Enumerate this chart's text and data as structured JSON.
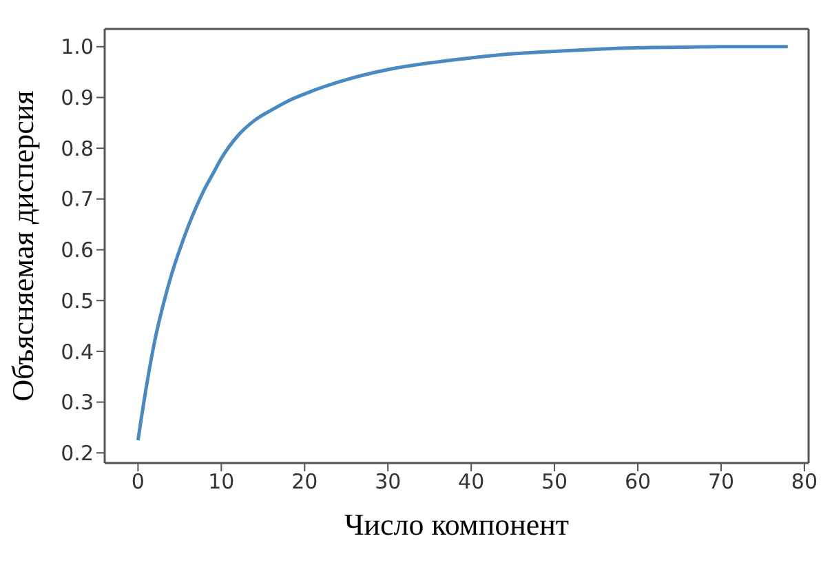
{
  "chart_data": {
    "type": "line",
    "xlabel": "Число компонент",
    "ylabel": "Объясняемая дисперсия",
    "x": [
      0,
      1,
      2,
      3,
      4,
      5,
      6,
      7,
      8,
      9,
      10,
      12,
      14,
      16,
      18,
      20,
      25,
      30,
      35,
      40,
      45,
      50,
      55,
      60,
      65,
      70,
      78
    ],
    "series": [
      {
        "color": "#4a8ac0",
        "values": [
          0.225,
          0.33,
          0.42,
          0.49,
          0.55,
          0.6,
          0.645,
          0.685,
          0.72,
          0.75,
          0.78,
          0.825,
          0.855,
          0.875,
          0.893,
          0.907,
          0.935,
          0.955,
          0.968,
          0.978,
          0.986,
          0.991,
          0.995,
          0.998,
          0.999,
          1.0,
          1.0
        ]
      }
    ],
    "xlim": [
      -4,
      80.5
    ],
    "xticks": [
      0,
      10,
      20,
      30,
      40,
      50,
      60,
      70,
      80
    ],
    "ylim": [
      0.18,
      1.035
    ],
    "yticks": [
      {
        "value": 0.2,
        "label": "0.2"
      },
      {
        "value": 0.3,
        "label": "0.3"
      },
      {
        "value": 0.4,
        "label": "0.4"
      },
      {
        "value": 0.5,
        "label": "0.5"
      },
      {
        "value": 0.6,
        "label": "0.6"
      },
      {
        "value": 0.7,
        "label": "0.7"
      },
      {
        "value": 0.8,
        "label": "0.8"
      },
      {
        "value": 0.9,
        "label": "0.9"
      },
      {
        "value": 1.0,
        "label": "1.0"
      }
    ],
    "grid": false,
    "legend": false,
    "marker": "none",
    "line_style": "solid"
  }
}
